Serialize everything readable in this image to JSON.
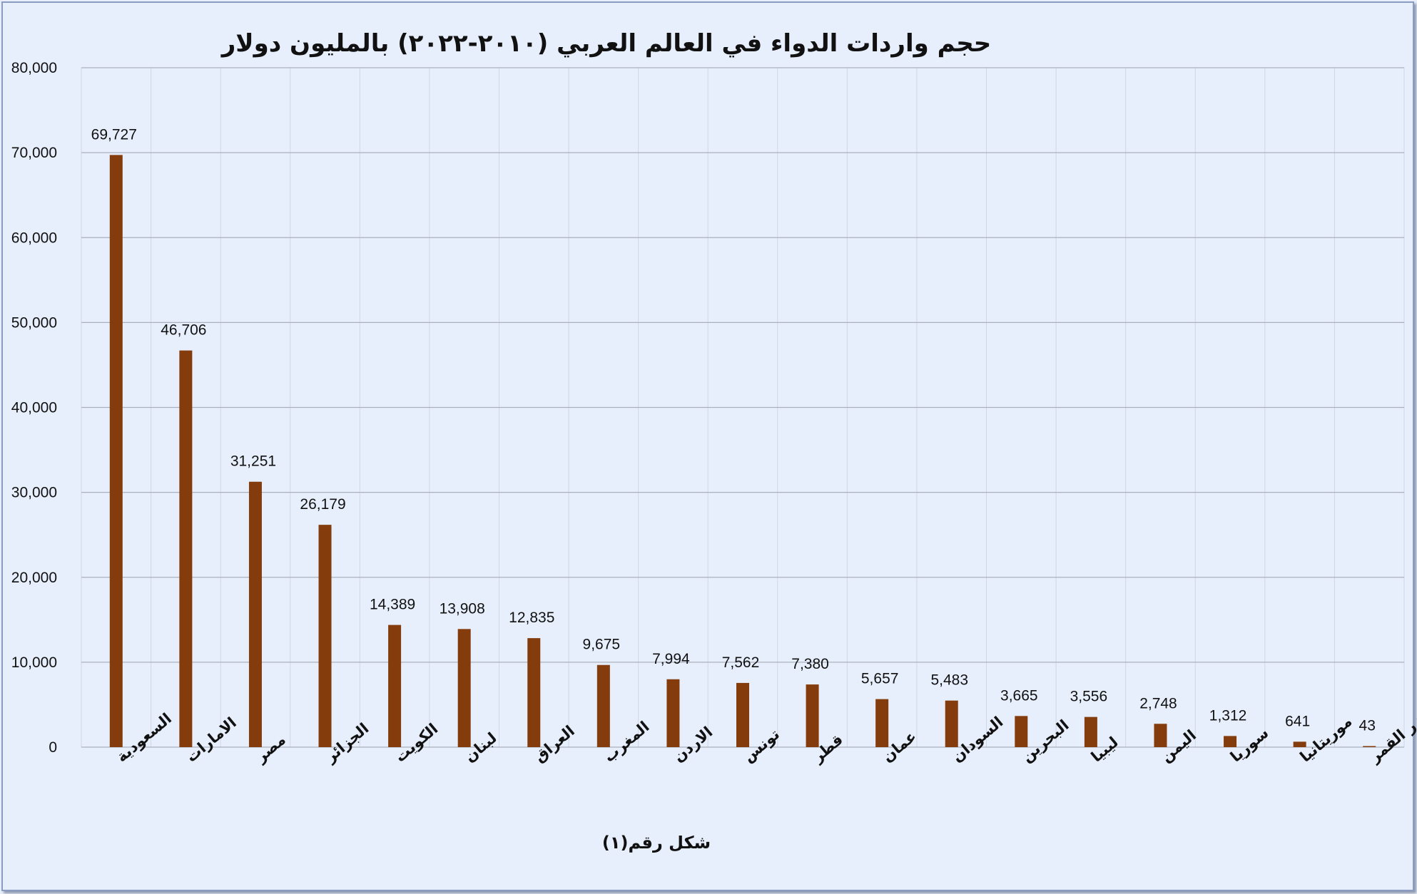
{
  "chart_data": {
    "type": "bar",
    "title": "حجم واردات الدواء في العالم العربي (٢٠١٠-٢٠٢٢) بالمليون دولار",
    "caption": "شكل رقم(١)",
    "xlabel": "",
    "ylabel": "",
    "ylim": [
      0,
      80000
    ],
    "yticks": [
      0,
      10000,
      20000,
      30000,
      40000,
      50000,
      60000,
      70000,
      80000
    ],
    "grid": true,
    "legend": "none",
    "bar_color": "#843c0c",
    "categories": [
      "السعودية",
      "الامارات",
      "مصر",
      "الجزائر",
      "الكويت",
      "لبنان",
      "العراق",
      "المغرب",
      "الاردن",
      "تونس",
      "قطر",
      "عمان",
      "السودان",
      "البحرين",
      "ليبيا",
      "اليمن",
      "سوريا",
      "موريتانيا",
      "جزر القمر"
    ],
    "values": [
      69727,
      46706,
      31251,
      26179,
      14389,
      13908,
      12835,
      9675,
      7994,
      7562,
      7380,
      5657,
      5483,
      3665,
      3556,
      2748,
      1312,
      641,
      43
    ]
  }
}
